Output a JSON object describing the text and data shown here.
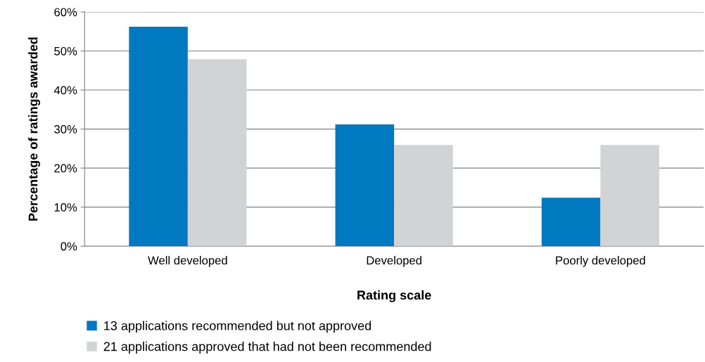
{
  "chart_data": {
    "type": "bar",
    "xlabel": "Rating scale",
    "ylabel": "Percentage of ratings awarded",
    "categories": [
      "Well developed",
      "Developed",
      "Poorly developed"
    ],
    "series": [
      {
        "name": "13 applications recommended but not approved",
        "color": "#0079c1",
        "values": [
          56.2,
          31.2,
          12.4
        ]
      },
      {
        "name": "21 applications approved that had not been recommended",
        "color": "#d1d3d4",
        "values": [
          47.9,
          25.9,
          25.9
        ]
      }
    ],
    "ylim": [
      0,
      60
    ],
    "yticks": [
      {
        "value": 0,
        "label": "0%"
      },
      {
        "value": 10,
        "label": "10%"
      },
      {
        "value": 20,
        "label": "20%"
      },
      {
        "value": 30,
        "label": "30%"
      },
      {
        "value": 40,
        "label": "40%"
      },
      {
        "value": 50,
        "label": "50%"
      },
      {
        "value": 60,
        "label": "60%"
      }
    ],
    "grid": "y",
    "legend": "bottom"
  }
}
